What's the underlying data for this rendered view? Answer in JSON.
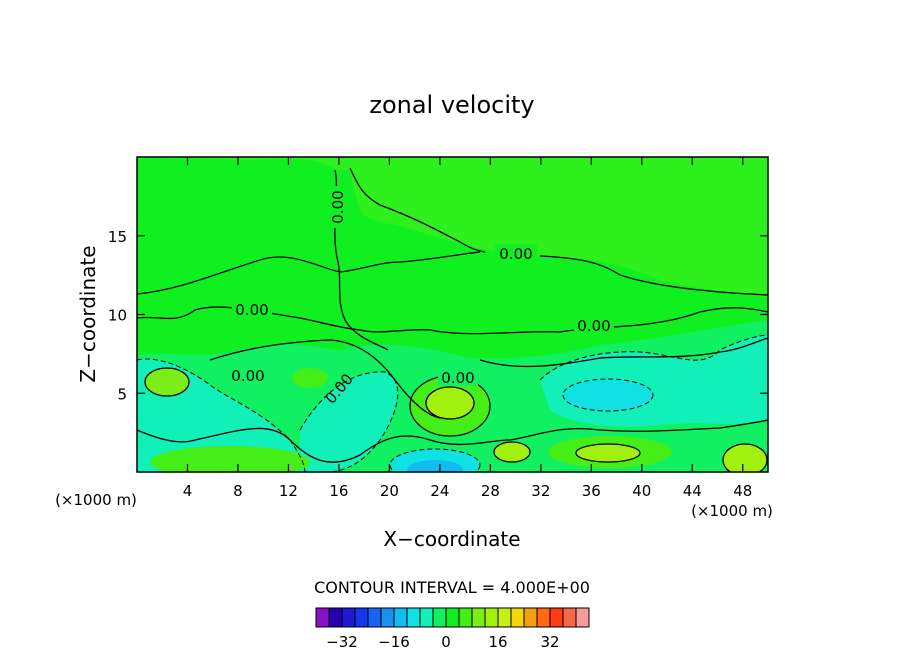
{
  "chart_data": {
    "type": "heatmap",
    "title": "zonal velocity",
    "xlabel": "X−coordinate",
    "ylabel": "Z−coordinate",
    "x_unit_label": "(×1000 m)",
    "z_unit_label": "(×1000 m)",
    "xlim": [
      0,
      50
    ],
    "ylim": [
      0,
      20
    ],
    "x_ticks": [
      4,
      8,
      12,
      16,
      20,
      24,
      28,
      32,
      36,
      40,
      44,
      48
    ],
    "y_ticks": [
      5,
      10,
      15
    ],
    "x_tick_labels": [
      "4",
      "8",
      "12",
      "16",
      "20",
      "24",
      "28",
      "32",
      "36",
      "40",
      "44",
      "48"
    ],
    "y_tick_labels": [
      "5",
      "10",
      "15"
    ],
    "contour_interval_text": "CONTOUR INTERVAL = 4.000E+00",
    "contour_label_text": "0.00",
    "colorbar": {
      "levels": [
        -36,
        -32,
        -28,
        -24,
        -20,
        -16,
        -12,
        -8,
        -4,
        0,
        4,
        8,
        12,
        16,
        20,
        24,
        28,
        32,
        36
      ],
      "tick_values": [
        -32,
        -16,
        0,
        16,
        32
      ],
      "tick_labels": [
        "−32",
        "−16",
        "0",
        "16",
        "32"
      ],
      "colors": [
        "#8a10c8",
        "#2400b0",
        "#1e1ad2",
        "#1636ee",
        "#1a62f6",
        "#1a90f0",
        "#12bcf0",
        "#10e2e4",
        "#10f0b8",
        "#10f060",
        "#10f020",
        "#46ee18",
        "#7aee16",
        "#a2f010",
        "#c6f014",
        "#f2d608",
        "#f6a010",
        "#ff6a10",
        "#ff3a14",
        "#f86848",
        "#f89a9a"
      ]
    },
    "features": [
      {
        "kind": "max",
        "x": 24.5,
        "z": 4.6,
        "approx_value": 12
      },
      {
        "kind": "max",
        "x": 4.0,
        "z": 5.3,
        "approx_value": 8
      },
      {
        "kind": "max",
        "x": 38.0,
        "z": 1.3,
        "approx_value": 12
      },
      {
        "kind": "max",
        "x": 48.0,
        "z": 1.0,
        "approx_value": 12
      },
      {
        "kind": "min",
        "x": 38.0,
        "z": 5.2,
        "approx_value": -8
      },
      {
        "kind": "min",
        "x": 24.0,
        "z": 0.3,
        "approx_value": -12
      },
      {
        "kind": "min",
        "x": 45.0,
        "z": 6.5,
        "approx_value": -4
      }
    ]
  }
}
